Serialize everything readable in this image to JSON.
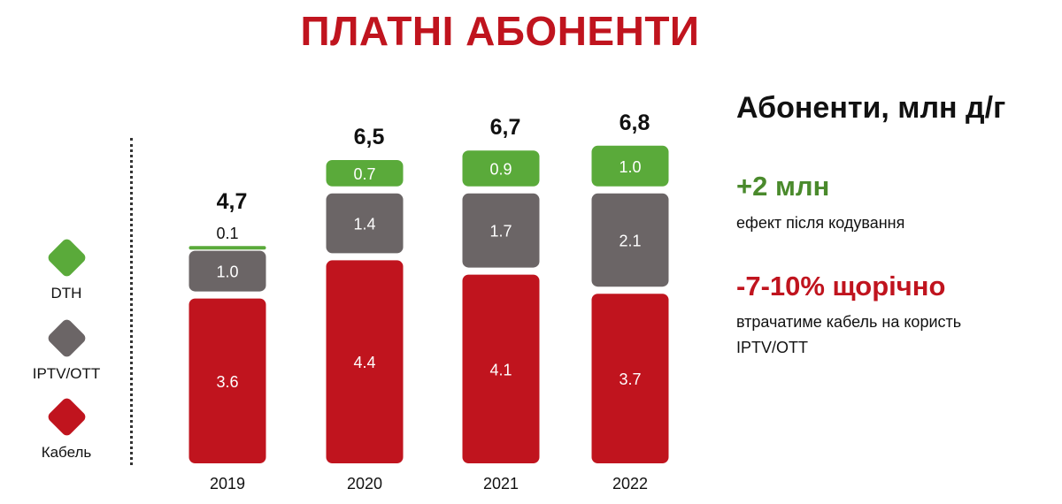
{
  "title": "ПЛАТНІ АБОНЕНТИ",
  "legend": [
    {
      "label": "DTH",
      "color": "#5aaa3a"
    },
    {
      "label": "IPTV/OTT",
      "color": "#6b6566"
    },
    {
      "label": "Кабель",
      "color": "#c0141e"
    }
  ],
  "chart_data": {
    "type": "bar",
    "stacked": true,
    "categories": [
      "2019",
      "2020",
      "2021",
      "2022"
    ],
    "totals": [
      "4,7",
      "6,5",
      "6,7",
      "6,8"
    ],
    "series": [
      {
        "name": "Кабель",
        "color": "#c0141e",
        "values": [
          3.6,
          4.4,
          4.1,
          3.7
        ],
        "labels": [
          "3.6",
          "4.4",
          "4.1",
          "3.7"
        ]
      },
      {
        "name": "IPTV/OTT",
        "color": "#6b6566",
        "values": [
          1.0,
          1.4,
          1.7,
          2.1
        ],
        "labels": [
          "1.0",
          "1.4",
          "1.7",
          "2.1"
        ]
      },
      {
        "name": "DTH",
        "color": "#5aaa3a",
        "values": [
          0.1,
          0.7,
          0.9,
          1.0
        ],
        "labels": [
          "0.1",
          "0.7",
          "0.9",
          "1.0"
        ]
      }
    ],
    "legend_position": "left",
    "grid": false
  },
  "side_panel": {
    "heading": "Абоненти, млн д/г",
    "stat1": {
      "value": "+2 млн",
      "note": "ефект після кодування",
      "color": "#4a8a2c"
    },
    "stat2": {
      "value": "-7-10% щорічно",
      "note": "втрачатиме кабель на користь IPTV/OTT",
      "color": "#c0141e"
    }
  }
}
